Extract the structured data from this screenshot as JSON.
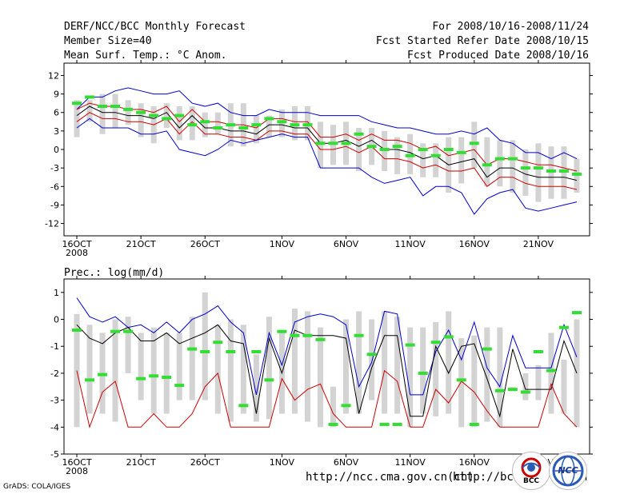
{
  "header": {
    "title": "DERF/NCC/BCC Monthly Forecast",
    "member_size": "Member Size=40",
    "variable": "Mean Surf. Temp.: °C Anom.",
    "period": "For 2008/10/16-2008/11/24",
    "started": "Fcst Started Refer Date 2008/10/15",
    "produced": "Fcst Produced Date 2008/10/16"
  },
  "footer": {
    "url1": "http://ncc.cma.gov.cn(ch)",
    "url2": "http://bcc.",
    "url2_tail": "n",
    "credit": "GrADS: COLA/IGES",
    "logo1_text": "BCC",
    "logo2_text": "NCC"
  },
  "colors": {
    "envelope": "#0000cc",
    "mean": "#000000",
    "spread": "#cc0000",
    "bar": "#d3d3d3",
    "obs": "#33dd33"
  },
  "chart_data": [
    {
      "type": "line",
      "title": "Mean Surf. Temp.: °C Anom.",
      "xlabel": "",
      "ylabel": "",
      "x_tick_labels": [
        "16OCT",
        "21OCT",
        "26OCT",
        "1NOV",
        "6NOV",
        "11NOV",
        "16NOV",
        "21NOV"
      ],
      "x_tick_days": [
        1,
        6,
        11,
        17,
        22,
        27,
        32,
        37
      ],
      "year_label": "2008",
      "yticks": [
        12,
        9,
        6,
        3,
        0,
        -3,
        -6,
        -9,
        -12
      ],
      "ylim": [
        -14,
        14
      ],
      "xlim": [
        0,
        41
      ],
      "days": [
        1,
        2,
        3,
        4,
        5,
        6,
        7,
        8,
        9,
        10,
        11,
        12,
        13,
        14,
        15,
        16,
        17,
        18,
        19,
        20,
        21,
        22,
        23,
        24,
        25,
        26,
        27,
        28,
        29,
        30,
        31,
        32,
        33,
        34,
        35,
        36,
        37,
        38,
        39,
        40
      ],
      "series": [
        {
          "name": "max",
          "values": [
            6.5,
            8.5,
            8.5,
            9.5,
            10,
            9.5,
            9,
            9,
            9.5,
            7.5,
            7,
            7.5,
            6,
            5.5,
            5.5,
            6.5,
            6,
            6,
            6,
            5.5,
            5.5,
            5.5,
            5.5,
            4.5,
            4,
            3.5,
            3.5,
            3,
            2.5,
            2.5,
            3,
            2.5,
            3.5,
            1.5,
            1,
            -0.5,
            -0.5,
            -1.5,
            -0.5,
            -1.5
          ]
        },
        {
          "name": "upper",
          "values": [
            6.5,
            7.5,
            7,
            7,
            6.5,
            6.5,
            6,
            7,
            4.5,
            6.5,
            4.5,
            4.5,
            4,
            4,
            3.5,
            5,
            5,
            4.5,
            4.5,
            2,
            2,
            2.5,
            1.5,
            2.5,
            1.5,
            1.5,
            1,
            0,
            0.5,
            -1,
            -0.5,
            0,
            -2.5,
            -1.5,
            -1.5,
            -2,
            -2.5,
            -2.5,
            -3,
            -3.5
          ]
        },
        {
          "name": "mean",
          "values": [
            5.5,
            7,
            6,
            6,
            5.5,
            5.5,
            5,
            6,
            3.5,
            5.5,
            3.5,
            3.5,
            3,
            3,
            2.5,
            4,
            4,
            3.5,
            3.5,
            1,
            1,
            1.5,
            0.5,
            1.5,
            0,
            0,
            -0.5,
            -1.5,
            -1,
            -2.5,
            -2,
            -1.5,
            -4.5,
            -3,
            -3,
            -4,
            -4.5,
            -4.5,
            -4.5,
            -5
          ]
        },
        {
          "name": "lower",
          "values": [
            4.5,
            6,
            5,
            5,
            4.5,
            4.5,
            4,
            5,
            2.5,
            4.5,
            2.5,
            2.5,
            2,
            2,
            1.5,
            3,
            3,
            2.5,
            2.5,
            0,
            0,
            0.5,
            -0.5,
            0.5,
            -1.5,
            -1.5,
            -2,
            -3,
            -2.5,
            -3.5,
            -3.5,
            -3,
            -6,
            -4.5,
            -4.5,
            -5.5,
            -6,
            -6,
            -6,
            -6.5
          ]
        },
        {
          "name": "min",
          "values": [
            3.5,
            5,
            3.5,
            3.5,
            3.5,
            2.5,
            2.5,
            3,
            0,
            -0.5,
            -1,
            0,
            1.5,
            1,
            1.5,
            2,
            2.5,
            2,
            2,
            -3,
            -3,
            -3,
            -3,
            -4.5,
            -5.5,
            -5,
            -4.5,
            -7.5,
            -6,
            -6,
            -7,
            -10.5,
            -8,
            -7,
            -6.5,
            -9.5,
            -10,
            -9.5,
            -9,
            -8.5
          ]
        },
        {
          "name": "obs",
          "values": [
            7.5,
            8.5,
            7,
            7,
            6.5,
            6,
            5.5,
            5,
            5.5,
            4,
            4.5,
            3.5,
            4,
            3.5,
            4,
            5,
            4.5,
            4,
            4,
            1,
            1,
            1,
            2.5,
            0.5,
            0,
            0.5,
            -1,
            0,
            -1,
            0,
            -0.5,
            1,
            -2.5,
            -1.5,
            -1.5,
            -3,
            -3,
            -3.5,
            -3.5,
            -4
          ]
        }
      ],
      "box_top": [
        8,
        8,
        9,
        9,
        8,
        7.5,
        7,
        7.5,
        7,
        7,
        6,
        6,
        7.5,
        7.5,
        5.5,
        5.5,
        6.5,
        7,
        7,
        4.5,
        4,
        4.5,
        3.5,
        3.5,
        3,
        2,
        2.5,
        1,
        1,
        2,
        2,
        4.5,
        2,
        1.5,
        1.5,
        0,
        1,
        0.5,
        0.5,
        -1.5
      ],
      "box_bottom": [
        2,
        4.5,
        2.5,
        3.5,
        4,
        2,
        1,
        3.5,
        1.5,
        1.5,
        2,
        2.5,
        0.5,
        0.5,
        1,
        2,
        2,
        1.5,
        1.5,
        -3,
        -2.5,
        -2.5,
        -3.5,
        -2.5,
        -3.5,
        -4,
        -4,
        -4.5,
        -4.5,
        -7,
        -5.5,
        -3,
        -6,
        -6,
        -7,
        -7.5,
        -8.5,
        -8,
        -8,
        -7
      ]
    },
    {
      "type": "line",
      "title": "Prec.: log(mm/d)",
      "xlabel": "",
      "ylabel": "",
      "x_tick_labels": [
        "16OCT",
        "21OCT",
        "26OCT",
        "1NOV",
        "6NOV",
        "11NOV",
        "16NOV",
        "21NOV"
      ],
      "x_tick_days": [
        1,
        6,
        11,
        17,
        22,
        27,
        32,
        37
      ],
      "year_label": "2008",
      "yticks": [
        1,
        0,
        -1,
        -2,
        -3,
        -4,
        -5
      ],
      "ylim": [
        -5,
        1.5
      ],
      "xlim": [
        0,
        41
      ],
      "days": [
        1,
        2,
        3,
        4,
        5,
        6,
        7,
        8,
        9,
        10,
        11,
        12,
        13,
        14,
        15,
        16,
        17,
        18,
        19,
        20,
        21,
        22,
        23,
        24,
        25,
        26,
        27,
        28,
        29,
        30,
        31,
        32,
        33,
        34,
        35,
        36,
        37,
        38,
        39,
        40
      ],
      "series": [
        {
          "name": "max",
          "values": [
            0.8,
            0.1,
            -0.1,
            0.1,
            -0.3,
            -0.2,
            -0.5,
            -0.1,
            -0.5,
            0,
            0.2,
            0.5,
            -0.1,
            -0.5,
            -2.8,
            -0.5,
            -1.7,
            -0.1,
            0.1,
            0.2,
            0.1,
            -0.2,
            -2.5,
            -1.6,
            0.3,
            0.2,
            -2.8,
            -2.8,
            -1.2,
            -0.4,
            -1.5,
            -0.1,
            -1.8,
            -2.5,
            -0.6,
            -1.8,
            -1.8,
            -1.8,
            -0.2,
            -1.4
          ]
        },
        {
          "name": "mean",
          "values": [
            -0.2,
            -0.7,
            -0.9,
            -0.5,
            -0.3,
            -0.8,
            -0.8,
            -0.5,
            -0.9,
            -0.7,
            -0.5,
            -0.2,
            -0.8,
            -0.9,
            -3.5,
            -0.7,
            -2,
            -0.4,
            -0.6,
            -0.6,
            -0.6,
            -0.7,
            -3.5,
            -1.8,
            -0.6,
            -0.6,
            -3.6,
            -3.6,
            -1,
            -2,
            -1,
            -0.9,
            -2.2,
            -3.6,
            -1.1,
            -2.6,
            -2.6,
            -2.6,
            -0.8,
            -2
          ]
        },
        {
          "name": "min",
          "values": [
            -1.9,
            -4,
            -2.7,
            -2.3,
            -4,
            -4,
            -3.5,
            -4,
            -4,
            -3.5,
            -2.5,
            -2,
            -4,
            -4,
            -4,
            -4,
            -2.2,
            -3,
            -2.6,
            -2.4,
            -3.5,
            -4,
            -4,
            -4,
            -1.9,
            -2.3,
            -4,
            -4,
            -2.6,
            -3.1,
            -2.3,
            -2.7,
            -3.4,
            -4,
            -4,
            -4,
            -4,
            -2.4,
            -3.5,
            -4
          ]
        },
        {
          "name": "obs",
          "values": [
            -0.4,
            -2.25,
            -2.05,
            -0.45,
            -0.45,
            -2.2,
            -2.1,
            -2.15,
            -2.45,
            -1.1,
            -1.2,
            -0.85,
            -1.2,
            -3.2,
            -1.2,
            -2.25,
            -0.45,
            -0.6,
            -0.6,
            -0.75,
            -3.9,
            -3.2,
            -0.6,
            -1.3,
            -3.9,
            -3.9,
            -0.95,
            -2,
            -0.85,
            -0.65,
            -2.25,
            -3.9,
            -1.1,
            -2.65,
            -2.6,
            -2.7,
            -1.2,
            -1.9,
            -0.3,
            0.25
          ]
        },
        {
          "name": "obs_extra",
          "values": []
        }
      ],
      "box_top": [
        0.2,
        -0.2,
        -0.5,
        0,
        0.1,
        -0.5,
        -0.3,
        -0.5,
        -0.5,
        0.1,
        1,
        -0.2,
        0,
        -0.2,
        -1.3,
        0.1,
        -0.5,
        0.4,
        0.3,
        -0.3,
        -2.5,
        0,
        0.3,
        0,
        0.3,
        0.1,
        -0.3,
        -0.3,
        -0.1,
        0.3,
        -0.7,
        -0.6,
        -0.3,
        -0.3,
        -2.5,
        -2,
        -1.7,
        -0.5,
        -1.5,
        0
      ],
      "box_bottom": [
        -4,
        -3.5,
        -3.5,
        -3.8,
        -2,
        -3,
        -3.5,
        -3.5,
        -3,
        -3,
        -3,
        -3.5,
        -3.8,
        -3.5,
        -3.8,
        -3.7,
        -3.5,
        -3.5,
        -3.8,
        -4,
        -4,
        -3.5,
        -3.5,
        -3,
        -3.5,
        -3.5,
        -4,
        -3.5,
        -3.6,
        -3.5,
        -4,
        -4,
        -3.8,
        -4,
        -2.5,
        -3,
        -3,
        -3.5,
        -3.5,
        -4
      ]
    }
  ]
}
